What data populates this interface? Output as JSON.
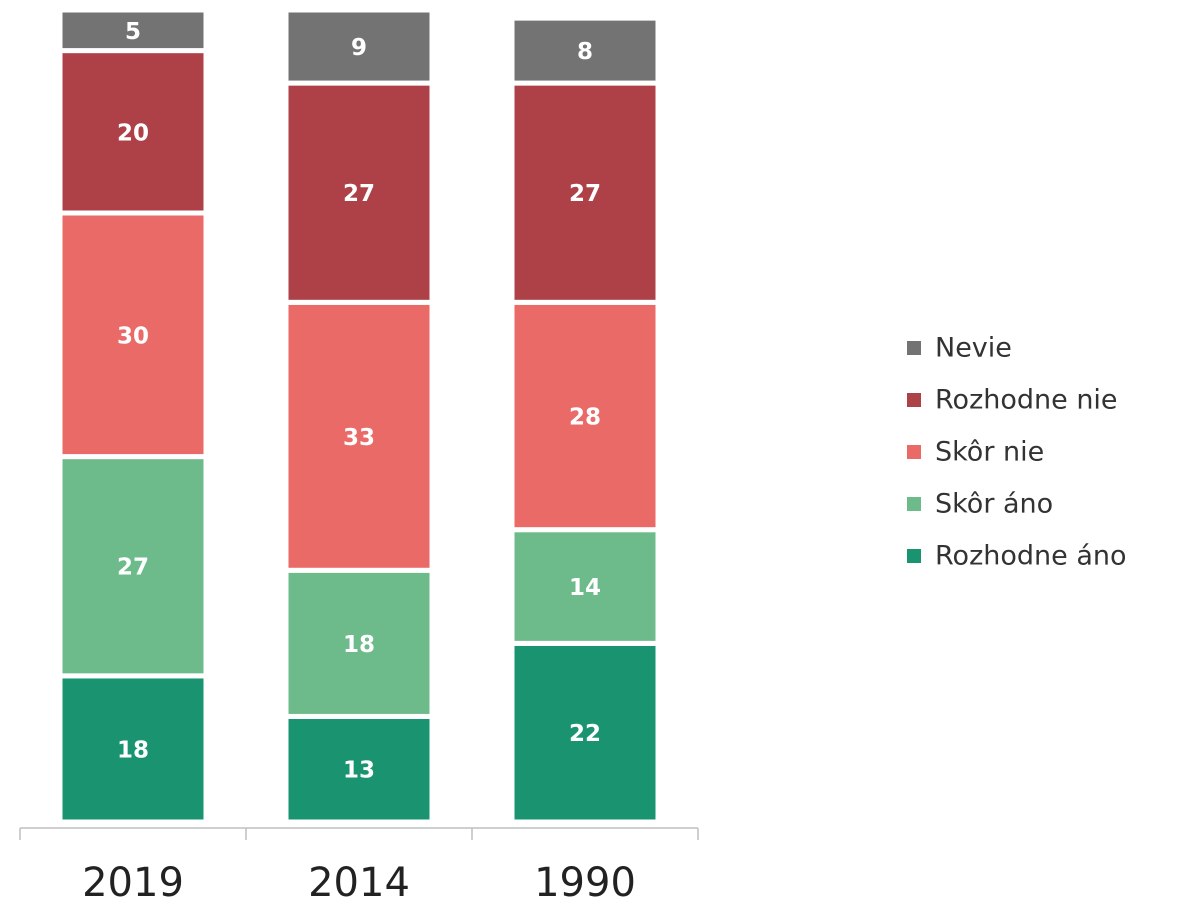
{
  "chart_data": {
    "type": "stacked_bar",
    "categories": [
      "2019",
      "2014",
      "1990"
    ],
    "series": [
      {
        "name": "Rozhodne áno",
        "color": "#1a9470",
        "values": [
          18,
          13,
          22
        ]
      },
      {
        "name": "Skôr áno",
        "color": "#6dbb8b",
        "values": [
          27,
          18,
          14
        ]
      },
      {
        "name": "Skôr nie",
        "color": "#ea6a68",
        "values": [
          30,
          33,
          28
        ]
      },
      {
        "name": "Rozhodne nie",
        "color": "#ae4048",
        "values": [
          20,
          27,
          27
        ]
      },
      {
        "name": "Nevie",
        "color": "#737373",
        "values": [
          5,
          9,
          8
        ]
      }
    ],
    "ylim": [
      0,
      100
    ],
    "legend": "right"
  }
}
